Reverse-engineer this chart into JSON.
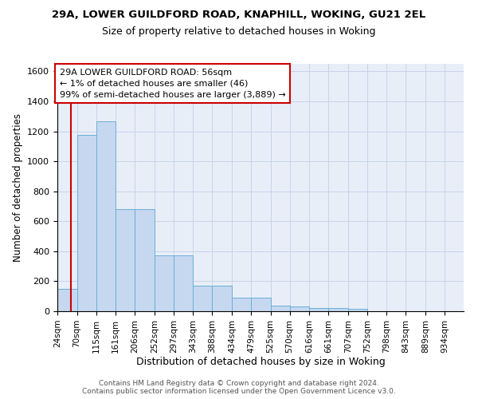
{
  "title1": "29A, LOWER GUILDFORD ROAD, KNAPHILL, WOKING, GU21 2EL",
  "title2": "Size of property relative to detached houses in Woking",
  "xlabel": "Distribution of detached houses by size in Woking",
  "ylabel": "Number of detached properties",
  "bin_labels": [
    "24sqm",
    "70sqm",
    "115sqm",
    "161sqm",
    "206sqm",
    "252sqm",
    "297sqm",
    "343sqm",
    "388sqm",
    "434sqm",
    "479sqm",
    "525sqm",
    "570sqm",
    "616sqm",
    "661sqm",
    "707sqm",
    "752sqm",
    "798sqm",
    "843sqm",
    "889sqm",
    "934sqm"
  ],
  "bin_edges": [
    24,
    70,
    115,
    161,
    206,
    252,
    297,
    343,
    388,
    434,
    479,
    525,
    570,
    616,
    661,
    707,
    752,
    798,
    843,
    889,
    934,
    979
  ],
  "bar_heights": [
    150,
    1175,
    1265,
    680,
    680,
    375,
    375,
    170,
    170,
    90,
    90,
    35,
    30,
    20,
    20,
    15,
    2,
    2,
    1,
    1,
    1
  ],
  "bar_color": "#c5d8f0",
  "bar_edgecolor": "#6baed6",
  "grid_color": "#c8d4e8",
  "background_color": "#e8eef8",
  "property_sqm": 56,
  "red_line_color": "#cc0000",
  "annotation_line1": "29A LOWER GUILDFORD ROAD: 56sqm",
  "annotation_line2": "← 1% of detached houses are smaller (46)",
  "annotation_line3": "99% of semi-detached houses are larger (3,889) →",
  "annotation_box_color": "#ffffff",
  "annotation_box_edgecolor": "#cc0000",
  "ylim": [
    0,
    1650
  ],
  "yticks": [
    0,
    200,
    400,
    600,
    800,
    1000,
    1200,
    1400,
    1600
  ],
  "footer_text": "Contains HM Land Registry data © Crown copyright and database right 2024.\nContains public sector information licensed under the Open Government Licence v3.0."
}
